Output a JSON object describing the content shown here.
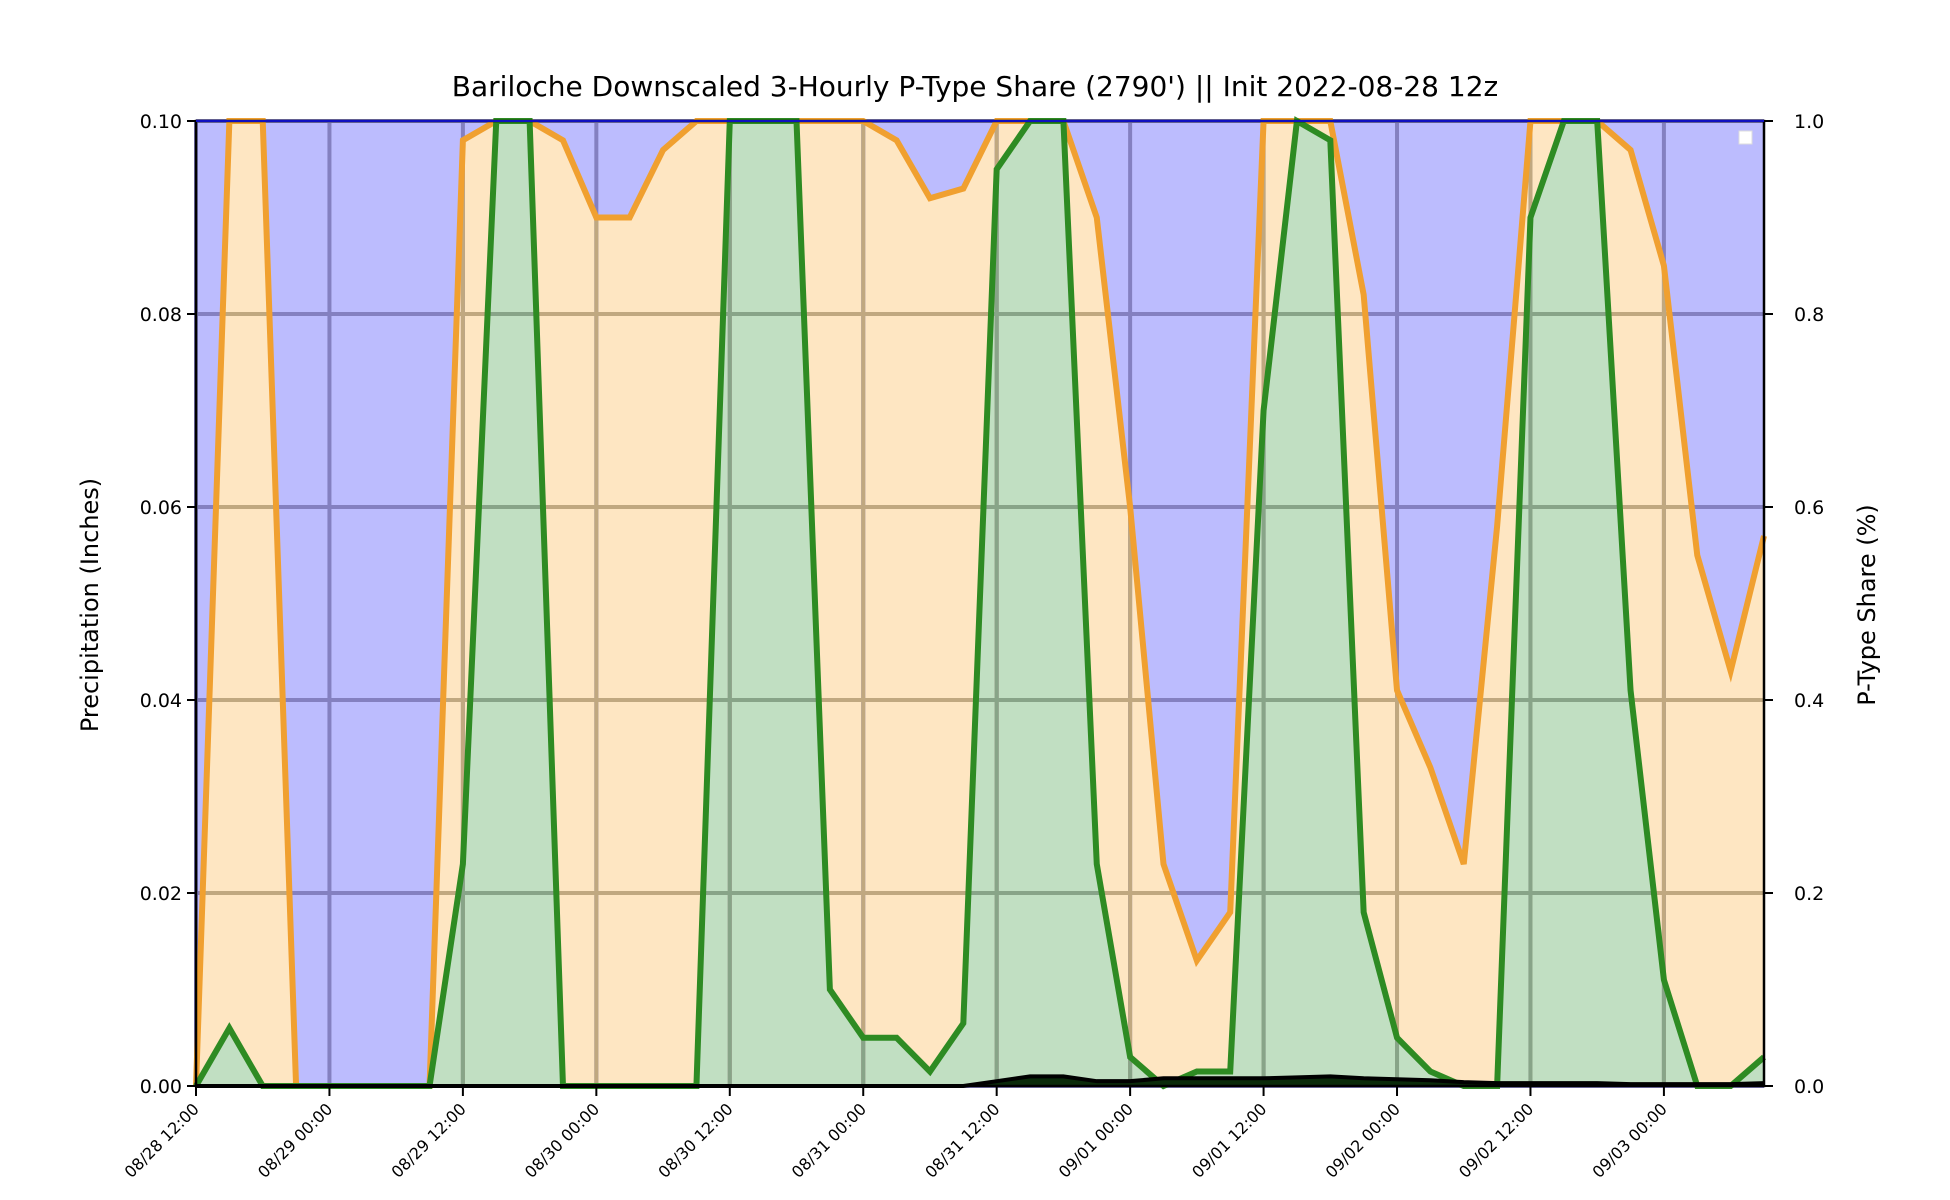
{
  "chart_data": {
    "type": "area",
    "title": "Bariloche Downscaled 3-Hourly P-Type Share (2790') || Init 2022-08-28 12z",
    "ylabel": "Precipitation (Inches)",
    "ylabel_right": "P-Type Share (%)",
    "ylim": [
      0,
      0.1
    ],
    "ylim_right": [
      0,
      1.0
    ],
    "yticks": [
      "0.00",
      "0.02",
      "0.04",
      "0.06",
      "0.08",
      "0.10"
    ],
    "yticks_right": [
      "0.0",
      "0.2",
      "0.4",
      "0.6",
      "0.8",
      "1.0"
    ],
    "xticks": [
      "08/28 12:00",
      "08/29 00:00",
      "08/29 12:00",
      "08/30 00:00",
      "08/30 12:00",
      "08/31 00:00",
      "08/31 12:00",
      "09/01 00:00",
      "09/01 12:00",
      "09/02 00:00",
      "09/02 12:00",
      "09/03 00:00"
    ],
    "x_hours_from_init": [
      0,
      3,
      6,
      9,
      12,
      15,
      18,
      21,
      24,
      27,
      30,
      33,
      36,
      39,
      42,
      45,
      48,
      51,
      54,
      57,
      60,
      63,
      66,
      69,
      72,
      75,
      78,
      81,
      84,
      87,
      90,
      93,
      96,
      99,
      102,
      105,
      108,
      111,
      114,
      117,
      120,
      123,
      126,
      129,
      132,
      135,
      138,
      141
    ],
    "grid": true,
    "legend": "top-right",
    "colors": {
      "snow_fill": "#bcbcfe",
      "mixed_fill": "#fee6c2",
      "rain_fill": "#c1dfc2",
      "mixed_line": "#f0a030",
      "rain_line": "#2e8b23",
      "precip_line": "#000000",
      "grid_snow": "#8480c0",
      "grid_mixed": "#c0a880",
      "grid_rain": "#88a488"
    },
    "series": [
      {
        "values": [
          0.0,
          1.0,
          1.0,
          0.0,
          0.0,
          0.0,
          0.0,
          0.0,
          0.98,
          1.0,
          1.0,
          0.98,
          0.9,
          0.9,
          0.97,
          1.0,
          1.0,
          1.0,
          1.0,
          1.0,
          1.0,
          0.98,
          0.92,
          0.93,
          1.0,
          1.0,
          1.0,
          0.9,
          0.6,
          0.23,
          0.13,
          0.18,
          1.0,
          1.0,
          1.0,
          0.82,
          0.41,
          0.33,
          0.23,
          0.58,
          1.0,
          1.0,
          1.0,
          0.97,
          0.85,
          0.55,
          0.43,
          0.57
        ]
      },
      {
        "values": [
          0.0,
          0.06,
          0.0,
          0.0,
          0.0,
          0.0,
          0.0,
          0.0,
          0.23,
          1.0,
          1.0,
          0.0,
          0.0,
          0.0,
          0.0,
          0.0,
          1.0,
          1.0,
          1.0,
          0.1,
          0.05,
          0.05,
          0.015,
          0.065,
          0.95,
          1.0,
          1.0,
          0.23,
          0.03,
          0.0,
          0.015,
          0.015,
          0.7,
          1.0,
          0.98,
          0.18,
          0.05,
          0.015,
          0.0,
          0.0,
          0.9,
          1.0,
          1.0,
          0.41,
          0.11,
          0.0,
          0.0,
          0.03
        ]
      },
      {
        "values": [
          0,
          0,
          0,
          0,
          0,
          0,
          0,
          0,
          0,
          0,
          0,
          0,
          0,
          0,
          0,
          0,
          0,
          0,
          0,
          0,
          0,
          0,
          0,
          0,
          0.0005,
          0.001,
          0.001,
          0.0005,
          0.0005,
          0.0008,
          0.0008,
          0.0008,
          0.0008,
          0.0009,
          0.001,
          0.0008,
          0.0007,
          0.0006,
          0.0004,
          0.0003,
          0.0003,
          0.0003,
          0.0003,
          0.0002,
          0.0002,
          0.0002,
          0.0002,
          0.0003
        ]
      }
    ]
  }
}
